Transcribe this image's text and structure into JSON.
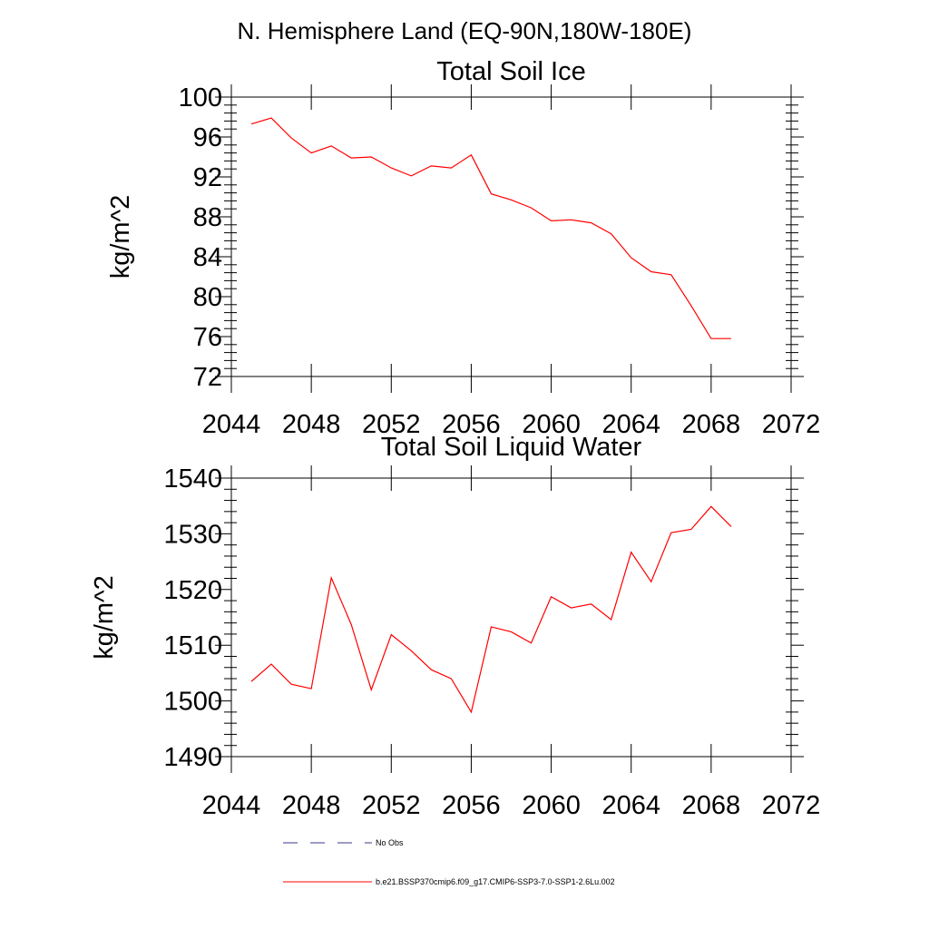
{
  "header": {
    "title": "N. Hemisphere Land (EQ-90N,180W-180E)"
  },
  "chart_data": [
    {
      "type": "line",
      "title": "Total Soil Ice",
      "xlabel": "",
      "ylabel": "kg/m^2",
      "xlim": [
        2044,
        2072
      ],
      "ylim": [
        72,
        100
      ],
      "xticks": [
        "2044",
        "2048",
        "2052",
        "2056",
        "2060",
        "2064",
        "2068",
        "2072"
      ],
      "yticks": [
        "72",
        "76",
        "80",
        "84",
        "88",
        "92",
        "96",
        "100"
      ],
      "grid": false,
      "series": [
        {
          "name": "b.e21.BSSP370cmip6.f09_g17.CMIP6-SSP3-7.0-SSP1-2.6Lu.002",
          "color": "#ff0000",
          "x": [
            2045,
            2046,
            2047,
            2048,
            2049,
            2050,
            2051,
            2052,
            2053,
            2054,
            2055,
            2056,
            2057,
            2058,
            2059,
            2060,
            2061,
            2062,
            2063,
            2064,
            2065,
            2066,
            2067,
            2068,
            2069
          ],
          "y": [
            97.3,
            97.9,
            95.9,
            94.4,
            95.1,
            93.9,
            94.0,
            92.9,
            92.1,
            93.1,
            92.9,
            94.2,
            90.3,
            89.7,
            88.9,
            87.6,
            87.7,
            87.4,
            86.3,
            83.9,
            82.5,
            82.2,
            79.1,
            75.8,
            75.8
          ]
        }
      ]
    },
    {
      "type": "line",
      "title": "Total Soil Liquid Water",
      "xlabel": "",
      "ylabel": "kg/m^2",
      "xlim": [
        2044,
        2072
      ],
      "ylim": [
        1490,
        1540
      ],
      "xticks": [
        "2044",
        "2048",
        "2052",
        "2056",
        "2060",
        "2064",
        "2068",
        "2072"
      ],
      "yticks": [
        "1490",
        "1500",
        "1510",
        "1520",
        "1530",
        "1540"
      ],
      "grid": false,
      "series": [
        {
          "name": "b.e21.BSSP370cmip6.f09_g17.CMIP6-SSP3-7.0-SSP1-2.6Lu.002",
          "color": "#ff0000",
          "x": [
            2045,
            2046,
            2047,
            2048,
            2049,
            2050,
            2051,
            2052,
            2053,
            2054,
            2055,
            2056,
            2057,
            2058,
            2059,
            2060,
            2061,
            2062,
            2063,
            2064,
            2065,
            2066,
            2067,
            2068,
            2069
          ],
          "y": [
            1503.5,
            1506.6,
            1503.0,
            1502.2,
            1522.1,
            1513.7,
            1502.0,
            1511.9,
            1509.0,
            1505.6,
            1504.0,
            1498.0,
            1513.3,
            1512.4,
            1510.4,
            1518.7,
            1516.7,
            1517.4,
            1514.6,
            1526.7,
            1521.4,
            1530.2,
            1530.8,
            1534.9,
            1531.3
          ]
        }
      ]
    }
  ],
  "legend": {
    "items": [
      {
        "label": "No Obs",
        "color": "#3a3a8a",
        "style": "dashed"
      },
      {
        "label": "b.e21.BSSP370cmip6.f09_g17.CMIP6-SSP3-7.0-SSP1-2.6Lu.002",
        "color": "#ff0000",
        "style": "solid"
      }
    ]
  }
}
